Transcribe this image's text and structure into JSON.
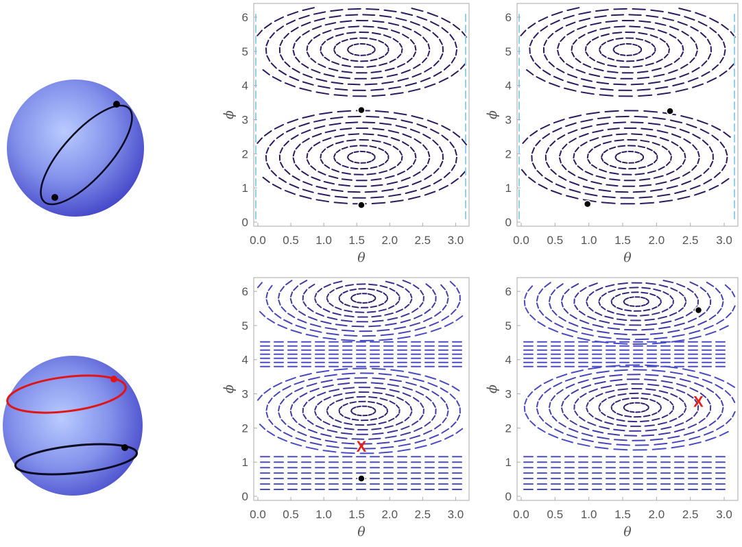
{
  "colors": {
    "stream_dark": "#2d1a5e",
    "stream_mid": "#4a4cc4",
    "stream_light": "#8fd0ee",
    "marker_point": "#000000",
    "marker_x": "#e8201c",
    "sphere_light": "#b9cbff",
    "sphere_dark": "#4446c8",
    "trajectory_black": "#0a0a20",
    "trajectory_red": "#e01515"
  },
  "spheres": [
    {
      "name": "sphere-top",
      "trajectories": [
        "black"
      ]
    },
    {
      "name": "sphere-bottom",
      "trajectories": [
        "red",
        "black"
      ]
    }
  ],
  "chart_data": [
    {
      "type": "streamplot",
      "panel": "top-left",
      "xlabel": "θ",
      "ylabel": "ϕ",
      "xlim": [
        0,
        3.1416
      ],
      "ylim": [
        0,
        6.2832
      ],
      "xticks": [
        "0.0",
        "0.5",
        "1.0",
        "1.5",
        "2.0",
        "2.5",
        "3.0"
      ],
      "yticks": [
        "0",
        "1",
        "2",
        "3",
        "4",
        "5",
        "6"
      ],
      "centers": [
        {
          "x": 1.57,
          "y": 1.9
        },
        {
          "x": 1.57,
          "y": 5.05
        }
      ],
      "points": [
        {
          "x": 1.57,
          "y": 3.28
        },
        {
          "x": 1.57,
          "y": 0.5
        }
      ],
      "x_markers": []
    },
    {
      "type": "streamplot",
      "panel": "top-right",
      "xlabel": "θ",
      "ylabel": "ϕ",
      "xlim": [
        0,
        3.1416
      ],
      "ylim": [
        0,
        6.2832
      ],
      "xticks": [
        "0.0",
        "0.5",
        "1.0",
        "1.5",
        "2.0",
        "2.5",
        "3.0"
      ],
      "yticks": [
        "0",
        "1",
        "2",
        "3",
        "4",
        "5",
        "6"
      ],
      "centers": [
        {
          "x": 1.6,
          "y": 1.9
        },
        {
          "x": 1.57,
          "y": 5.05
        }
      ],
      "points": [
        {
          "x": 2.2,
          "y": 3.25
        },
        {
          "x": 0.98,
          "y": 0.53
        }
      ],
      "x_markers": []
    },
    {
      "type": "streamplot",
      "panel": "bottom-left",
      "xlabel": "θ",
      "ylabel": "ϕ",
      "xlim": [
        0,
        3.1416
      ],
      "ylim": [
        0,
        6.2832
      ],
      "xticks": [
        "0.0",
        "0.5",
        "1.0",
        "1.5",
        "2.0",
        "2.5",
        "3.0"
      ],
      "yticks": [
        "0",
        "1",
        "2",
        "3",
        "4",
        "5",
        "6"
      ],
      "centers": [
        {
          "x": 1.6,
          "y": 2.5
        },
        {
          "x": 1.6,
          "y": 5.8
        }
      ],
      "points": [
        {
          "x": 1.57,
          "y": 0.52
        }
      ],
      "x_markers": [
        {
          "x": 1.57,
          "y": 1.47
        }
      ]
    },
    {
      "type": "streamplot",
      "panel": "bottom-right",
      "xlabel": "θ",
      "ylabel": "ϕ",
      "xlim": [
        0,
        3.1416
      ],
      "ylim": [
        0,
        6.2832
      ],
      "xticks": [
        "0.0",
        "0.5",
        "1.0",
        "1.5",
        "2.0",
        "2.5",
        "3.0"
      ],
      "yticks": [
        "0",
        "1",
        "2",
        "3",
        "4",
        "5",
        "6"
      ],
      "centers": [
        {
          "x": 1.7,
          "y": 2.6
        },
        {
          "x": 1.7,
          "y": 5.7
        }
      ],
      "points": [
        {
          "x": 2.62,
          "y": 5.45
        }
      ],
      "x_markers": [
        {
          "x": 2.62,
          "y": 2.78
        }
      ]
    }
  ]
}
